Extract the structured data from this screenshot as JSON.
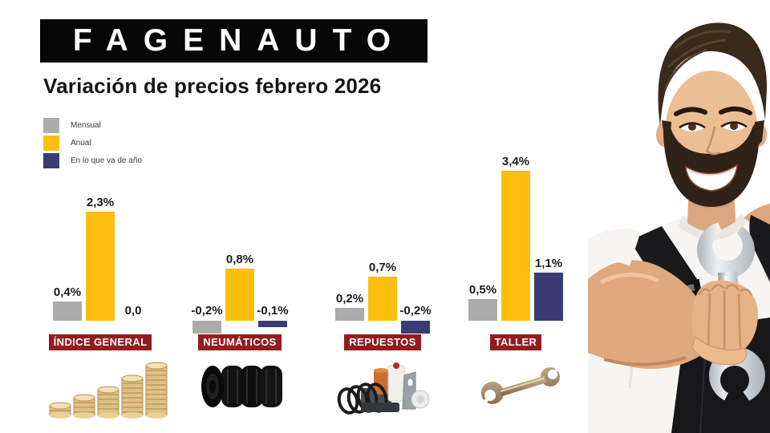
{
  "brand": {
    "logo_text": "FAGENAUTO"
  },
  "page": {
    "title": "Variación de precios febrero 2026"
  },
  "legend": {
    "items": [
      {
        "label": "Mensual",
        "color": "#ACACAC"
      },
      {
        "label": "Anual",
        "color": "#FDBE0D"
      },
      {
        "label": "En lo que va de año",
        "color": "#3B3B73"
      }
    ]
  },
  "chart_data": {
    "type": "bar",
    "title": "Variación de precios febrero 2026",
    "unit": "%",
    "categories": [
      "ÍNDICE GENERAL",
      "NEUMÁTICOS",
      "REPUESTOS",
      "TALLER"
    ],
    "series": [
      {
        "name": "Mensual",
        "color": "#ACACAC",
        "values": [
          0.4,
          -0.2,
          0.2,
          0.5
        ]
      },
      {
        "name": "Anual",
        "color": "#FDBE0D",
        "values": [
          2.3,
          0.8,
          0.7,
          3.4
        ]
      },
      {
        "name": "En lo que va de año",
        "color": "#3B3B73",
        "values": [
          0.0,
          -0.1,
          -0.2,
          1.1
        ]
      }
    ],
    "value_labels": [
      [
        "0,4%",
        "2,3%",
        "0,0"
      ],
      [
        "-0,2%",
        "0,8%",
        "-0,1%"
      ],
      [
        "0,2%",
        "0,7%",
        "-0,2%"
      ],
      [
        "0,5%",
        "3,4%",
        "1,1%"
      ]
    ],
    "baseline": 0,
    "grid": false,
    "legend_position": "top-left",
    "category_label_bg": "#941B1E",
    "value_label_color": "#1A1A1A"
  },
  "icons": [
    {
      "name": "coins-stack-icon",
      "category": "ÍNDICE GENERAL"
    },
    {
      "name": "tires-icon",
      "category": "NEUMÁTICOS"
    },
    {
      "name": "car-parts-icon",
      "category": "REPUESTOS"
    },
    {
      "name": "wrench-icon",
      "category": "TALLER"
    },
    {
      "name": "mechanic-photo",
      "category": ""
    }
  ]
}
